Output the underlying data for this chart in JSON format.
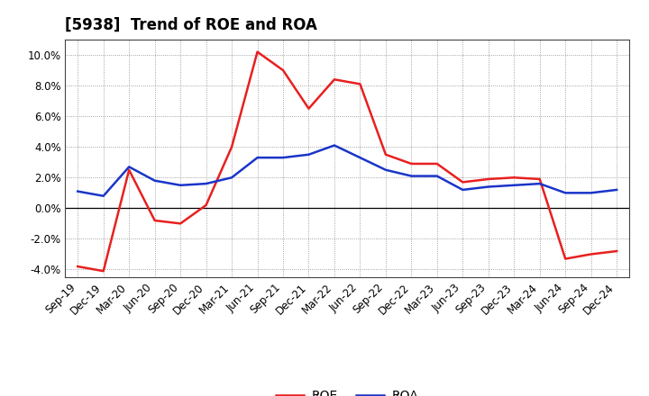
{
  "title": "[5938]  Trend of ROE and ROA",
  "labels": [
    "Sep-19",
    "Dec-19",
    "Mar-20",
    "Jun-20",
    "Sep-20",
    "Dec-20",
    "Mar-21",
    "Jun-21",
    "Sep-21",
    "Dec-21",
    "Mar-22",
    "Jun-22",
    "Sep-22",
    "Dec-22",
    "Mar-23",
    "Jun-23",
    "Sep-23",
    "Dec-23",
    "Mar-24",
    "Jun-24",
    "Sep-24",
    "Dec-24"
  ],
  "ROE": [
    -3.8,
    -4.1,
    2.5,
    -0.8,
    -1.0,
    0.2,
    4.0,
    10.2,
    9.0,
    6.5,
    8.4,
    8.1,
    3.5,
    2.9,
    2.9,
    1.7,
    1.9,
    2.0,
    1.9,
    -3.3,
    -3.0,
    -2.8
  ],
  "ROA": [
    1.1,
    0.8,
    2.7,
    1.8,
    1.5,
    1.6,
    2.0,
    3.3,
    3.3,
    3.5,
    4.1,
    3.3,
    2.5,
    2.1,
    2.1,
    1.2,
    1.4,
    1.5,
    1.6,
    1.0,
    1.0,
    1.2
  ],
  "roe_color": "#e82020",
  "roa_color": "#1a35c8",
  "background_color": "#ffffff",
  "plot_bg_color": "#ffffff",
  "grid_color": "#888888",
  "ylim": [
    -4.5,
    11.0
  ],
  "yticks": [
    -4.0,
    -2.0,
    0.0,
    2.0,
    4.0,
    6.0,
    8.0,
    10.0
  ],
  "line_width": 1.8,
  "title_fontsize": 12,
  "tick_fontsize": 8.5,
  "legend_fontsize": 10
}
